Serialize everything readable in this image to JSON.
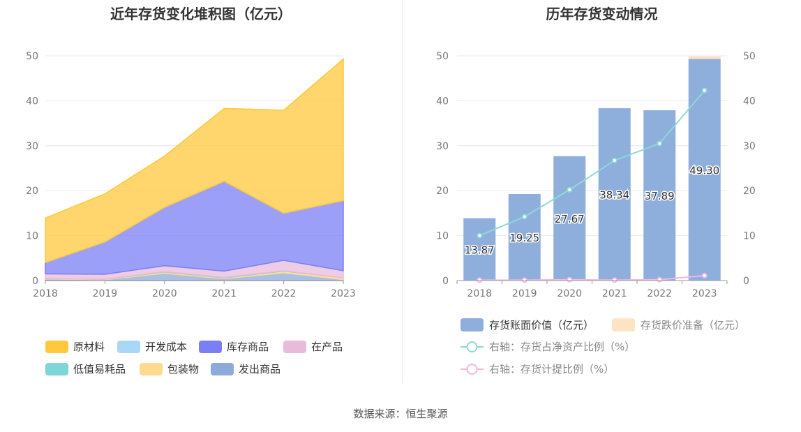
{
  "left_chart": {
    "title": "近年存货变化堆积图（亿元）"
  },
  "right_chart": {
    "title": "历年存货变动情况"
  },
  "source": "数据来源：恒生聚源",
  "chart_data": [
    {
      "type": "area",
      "stacked": true,
      "title": "近年存货变化堆积图（亿元）",
      "x": [
        "2018",
        "2019",
        "2020",
        "2021",
        "2022",
        "2023"
      ],
      "ylim": [
        0,
        50
      ],
      "yticks": [
        0,
        10,
        20,
        30,
        40,
        50
      ],
      "grid": true,
      "legend_position": "bottom",
      "series": [
        {
          "name": "发出商品",
          "color": "#8eaadb",
          "values": [
            0.3,
            0.2,
            1.6,
            0.4,
            1.7,
            0.2
          ]
        },
        {
          "name": "包装物",
          "color": "#ffd98e",
          "values": [
            0.1,
            0.1,
            0.3,
            0.2,
            0.4,
            0.4
          ]
        },
        {
          "name": "低值易耗品",
          "color": "#7fd6d6",
          "values": [
            0.0,
            0.0,
            0.1,
            0.1,
            0.1,
            0.0
          ]
        },
        {
          "name": "在产品",
          "color": "#e8bbdb",
          "values": [
            1.1,
            1.1,
            1.3,
            1.4,
            2.3,
            1.6
          ]
        },
        {
          "name": "库存商品",
          "color": "#7b7ff5",
          "values": [
            2.5,
            7.2,
            13.0,
            20.0,
            10.5,
            15.6
          ]
        },
        {
          "name": "开发成本",
          "color": "#a8d8f5",
          "values": [
            0.0,
            0.0,
            0.0,
            0.0,
            0.0,
            0.0
          ]
        },
        {
          "name": "原材料",
          "color": "#ffc83d",
          "values": [
            9.9,
            10.7,
            11.4,
            16.2,
            22.9,
            31.5
          ]
        }
      ],
      "legend_order": [
        "原材料",
        "开发成本",
        "库存商品",
        "在产品",
        "低值易耗品",
        "包装物",
        "发出商品"
      ]
    },
    {
      "type": "bar",
      "title": "历年存货变动情况",
      "categories": [
        "2018",
        "2019",
        "2020",
        "2021",
        "2022",
        "2023"
      ],
      "ylim": [
        0,
        50
      ],
      "yticks": [
        0,
        10,
        20,
        30,
        40,
        50
      ],
      "y2lim": [
        0,
        50
      ],
      "y2ticks": [
        0,
        10,
        20,
        30,
        40,
        50
      ],
      "grid": true,
      "legend_position": "bottom",
      "series": [
        {
          "name": "存货账面价值（亿元）",
          "kind": "bar",
          "color": "#8eaedb",
          "values": [
            13.87,
            19.25,
            27.67,
            38.34,
            37.89,
            49.3
          ],
          "labels": [
            "13.87",
            "19.25",
            "27.67",
            "38.34",
            "37.89",
            "49.30"
          ]
        },
        {
          "name": "存货跌价准备（亿元）",
          "kind": "bar",
          "color": "#fde5c4",
          "values": [
            0.0,
            0.0,
            0.0,
            0.0,
            0.0,
            0.6
          ]
        },
        {
          "name": "右轴：存货占净资产比例（%）",
          "kind": "line",
          "axis": "right",
          "color": "#8fd8d8",
          "values": [
            10.0,
            14.2,
            20.2,
            26.7,
            30.5,
            42.3
          ]
        },
        {
          "name": "右轴：存货计提比例（%）",
          "kind": "line",
          "axis": "right",
          "color": "#f0b8dc",
          "values": [
            0.1,
            0.1,
            0.2,
            0.1,
            0.2,
            1.1
          ]
        }
      ]
    }
  ]
}
